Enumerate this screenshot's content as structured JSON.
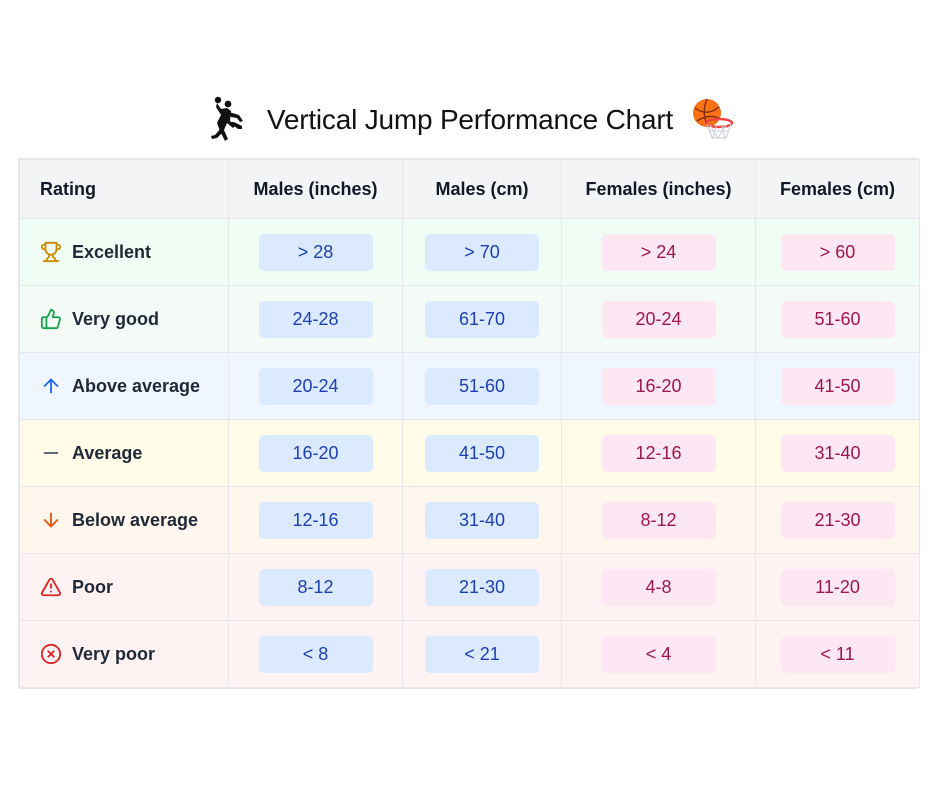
{
  "title": "Vertical Jump Performance Chart",
  "headers": {
    "rating": "Rating",
    "males_in": "Males (inches)",
    "males_cm": "Males (cm)",
    "females_in": "Females (inches)",
    "females_cm": "Females (cm)"
  },
  "rows": [
    {
      "rating": "Excellent",
      "icon": "trophy-icon",
      "bg": "#f0fdf4",
      "icon_color": "#ca8a04",
      "males_in": "> 28",
      "males_cm": "> 70",
      "females_in": "> 24",
      "females_cm": "> 60"
    },
    {
      "rating": "Very good",
      "icon": "thumbs-up-icon",
      "bg": "#f4fbf7",
      "icon_color": "#16a34a",
      "males_in": "24-28",
      "males_cm": "61-70",
      "females_in": "20-24",
      "females_cm": "51-60"
    },
    {
      "rating": "Above average",
      "icon": "arrow-up-icon",
      "bg": "#eff6ff",
      "icon_color": "#2563eb",
      "males_in": "20-24",
      "males_cm": "51-60",
      "females_in": "16-20",
      "females_cm": "41-50"
    },
    {
      "rating": "Average",
      "icon": "minus-icon",
      "bg": "#fefce8",
      "icon_color": "#4b5563",
      "males_in": "16-20",
      "males_cm": "41-50",
      "females_in": "12-16",
      "females_cm": "31-40"
    },
    {
      "rating": "Below average",
      "icon": "arrow-down-icon",
      "bg": "#fff7ed",
      "icon_color": "#ea580c",
      "males_in": "12-16",
      "males_cm": "31-40",
      "females_in": "8-12",
      "females_cm": "21-30"
    },
    {
      "rating": "Poor",
      "icon": "warning-icon",
      "bg": "#fef2f2",
      "icon_color": "#dc2626",
      "males_in": "8-12",
      "males_cm": "21-30",
      "females_in": "4-8",
      "females_cm": "11-20"
    },
    {
      "rating": "Very poor",
      "icon": "x-circle-icon",
      "bg": "#fef2f2",
      "icon_color": "#dc2626",
      "males_in": "< 8",
      "males_cm": "< 21",
      "females_in": "< 4",
      "females_cm": "< 11"
    }
  ]
}
